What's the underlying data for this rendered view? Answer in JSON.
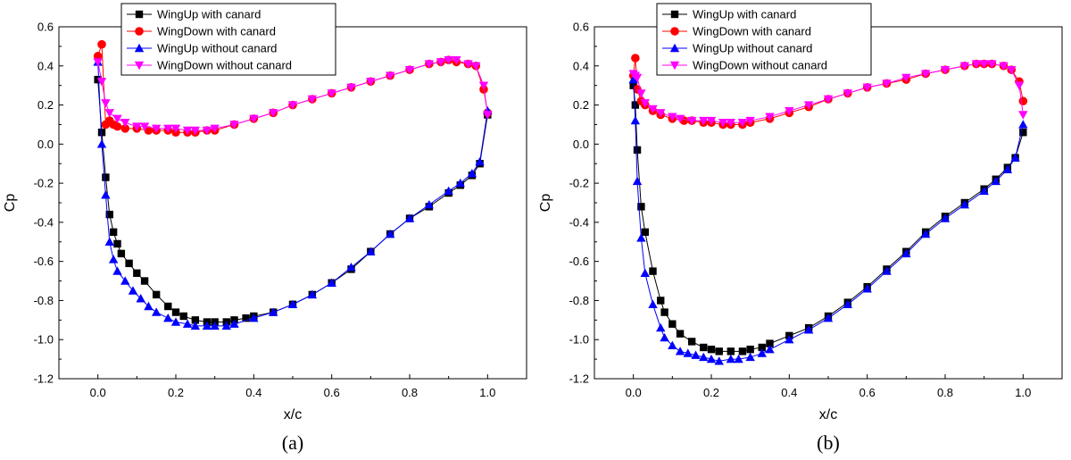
{
  "chart_data": [
    {
      "type": "scatter",
      "caption": "(a)",
      "xlabel": "x/c",
      "ylabel": "Cp",
      "xlim": [
        -0.1,
        1.1
      ],
      "ylim": [
        -1.2,
        0.6
      ],
      "xticks": [
        "0.0",
        "0.2",
        "0.4",
        "0.6",
        "0.8",
        "1.0"
      ],
      "yticks": [
        "0.6",
        "0.4",
        "0.2",
        "0.0",
        "-0.2",
        "-0.4",
        "-0.6",
        "-0.8",
        "-1.0",
        "-1.2"
      ],
      "legend_position": "top-center",
      "series": [
        {
          "name": "WingUp with canard",
          "marker": "square",
          "color": "#000000",
          "x": [
            0.0,
            0.01,
            0.02,
            0.03,
            0.04,
            0.05,
            0.06,
            0.08,
            0.1,
            0.12,
            0.15,
            0.18,
            0.2,
            0.22,
            0.25,
            0.28,
            0.3,
            0.33,
            0.35,
            0.38,
            0.4,
            0.45,
            0.5,
            0.55,
            0.6,
            0.65,
            0.7,
            0.75,
            0.8,
            0.85,
            0.9,
            0.93,
            0.96,
            0.98,
            1.0
          ],
          "y": [
            0.33,
            0.06,
            -0.17,
            -0.36,
            -0.45,
            -0.51,
            -0.56,
            -0.61,
            -0.66,
            -0.7,
            -0.77,
            -0.83,
            -0.86,
            -0.88,
            -0.9,
            -0.91,
            -0.91,
            -0.91,
            -0.9,
            -0.89,
            -0.88,
            -0.86,
            -0.82,
            -0.77,
            -0.71,
            -0.64,
            -0.55,
            -0.46,
            -0.38,
            -0.32,
            -0.25,
            -0.21,
            -0.16,
            -0.1,
            0.15
          ]
        },
        {
          "name": "WingDown with canard",
          "marker": "circle",
          "color": "#ff0000",
          "x": [
            0.0,
            0.01,
            0.02,
            0.03,
            0.04,
            0.05,
            0.07,
            0.1,
            0.13,
            0.15,
            0.18,
            0.2,
            0.23,
            0.25,
            0.28,
            0.3,
            0.35,
            0.4,
            0.45,
            0.5,
            0.55,
            0.6,
            0.65,
            0.7,
            0.75,
            0.8,
            0.85,
            0.88,
            0.9,
            0.92,
            0.95,
            0.97,
            0.99,
            1.0
          ],
          "y": [
            0.45,
            0.51,
            0.1,
            0.12,
            0.1,
            0.09,
            0.08,
            0.08,
            0.07,
            0.07,
            0.07,
            0.06,
            0.06,
            0.06,
            0.07,
            0.07,
            0.1,
            0.13,
            0.16,
            0.2,
            0.23,
            0.26,
            0.29,
            0.32,
            0.35,
            0.38,
            0.41,
            0.42,
            0.43,
            0.42,
            0.41,
            0.4,
            0.28,
            0.16
          ]
        },
        {
          "name": "WingUp without canard",
          "marker": "triangle-up",
          "color": "#0000ff",
          "x": [
            0.0,
            0.01,
            0.02,
            0.03,
            0.04,
            0.05,
            0.07,
            0.09,
            0.11,
            0.13,
            0.15,
            0.18,
            0.2,
            0.23,
            0.25,
            0.28,
            0.3,
            0.33,
            0.35,
            0.4,
            0.45,
            0.5,
            0.55,
            0.6,
            0.65,
            0.7,
            0.75,
            0.8,
            0.85,
            0.9,
            0.93,
            0.96,
            0.98,
            1.0
          ],
          "y": [
            0.42,
            0.0,
            -0.26,
            -0.5,
            -0.59,
            -0.65,
            -0.7,
            -0.75,
            -0.79,
            -0.83,
            -0.86,
            -0.89,
            -0.91,
            -0.92,
            -0.93,
            -0.93,
            -0.93,
            -0.93,
            -0.92,
            -0.89,
            -0.86,
            -0.82,
            -0.77,
            -0.71,
            -0.63,
            -0.55,
            -0.46,
            -0.38,
            -0.31,
            -0.24,
            -0.2,
            -0.15,
            -0.09,
            0.17
          ]
        },
        {
          "name": "WingDown without canard",
          "marker": "triangle-down",
          "color": "#ff00ff",
          "x": [
            0.0,
            0.01,
            0.02,
            0.03,
            0.05,
            0.07,
            0.1,
            0.12,
            0.15,
            0.18,
            0.2,
            0.23,
            0.25,
            0.28,
            0.3,
            0.35,
            0.4,
            0.45,
            0.5,
            0.55,
            0.6,
            0.65,
            0.7,
            0.75,
            0.8,
            0.85,
            0.88,
            0.9,
            0.92,
            0.95,
            0.97,
            0.99,
            1.0
          ],
          "y": [
            0.42,
            0.32,
            0.21,
            0.16,
            0.13,
            0.11,
            0.09,
            0.09,
            0.08,
            0.08,
            0.08,
            0.07,
            0.07,
            0.07,
            0.08,
            0.1,
            0.13,
            0.16,
            0.2,
            0.23,
            0.26,
            0.29,
            0.32,
            0.35,
            0.38,
            0.41,
            0.42,
            0.43,
            0.43,
            0.41,
            0.4,
            0.3,
            0.15
          ]
        }
      ]
    },
    {
      "type": "scatter",
      "caption": "(b)",
      "xlabel": "x/c",
      "ylabel": "Cp",
      "xlim": [
        -0.1,
        1.1
      ],
      "ylim": [
        -1.2,
        0.6
      ],
      "xticks": [
        "0.0",
        "0.2",
        "0.4",
        "0.6",
        "0.8",
        "1.0"
      ],
      "yticks": [
        "0.6",
        "0.4",
        "0.2",
        "0.0",
        "-0.2",
        "-0.4",
        "-0.6",
        "-0.8",
        "-1.0",
        "-1.2"
      ],
      "legend_position": "top-center",
      "series": [
        {
          "name": "WingUp with canard",
          "marker": "square",
          "color": "#000000",
          "x": [
            0.0,
            0.005,
            0.01,
            0.02,
            0.03,
            0.05,
            0.07,
            0.08,
            0.1,
            0.12,
            0.15,
            0.18,
            0.2,
            0.22,
            0.25,
            0.28,
            0.3,
            0.33,
            0.35,
            0.4,
            0.45,
            0.5,
            0.55,
            0.6,
            0.65,
            0.7,
            0.75,
            0.8,
            0.85,
            0.9,
            0.93,
            0.96,
            0.98,
            1.0
          ],
          "y": [
            0.3,
            0.2,
            -0.03,
            -0.32,
            -0.45,
            -0.65,
            -0.8,
            -0.86,
            -0.92,
            -0.97,
            -1.01,
            -1.04,
            -1.05,
            -1.06,
            -1.06,
            -1.06,
            -1.05,
            -1.04,
            -1.02,
            -0.98,
            -0.94,
            -0.88,
            -0.81,
            -0.73,
            -0.64,
            -0.55,
            -0.45,
            -0.37,
            -0.3,
            -0.23,
            -0.18,
            -0.12,
            -0.07,
            0.06
          ]
        },
        {
          "name": "WingDown with canard",
          "marker": "circle",
          "color": "#ff0000",
          "x": [
            0.0,
            0.005,
            0.01,
            0.02,
            0.03,
            0.05,
            0.07,
            0.1,
            0.13,
            0.15,
            0.18,
            0.2,
            0.23,
            0.25,
            0.28,
            0.3,
            0.35,
            0.4,
            0.45,
            0.5,
            0.55,
            0.6,
            0.65,
            0.7,
            0.75,
            0.8,
            0.85,
            0.88,
            0.9,
            0.92,
            0.95,
            0.97,
            0.99,
            1.0
          ],
          "y": [
            0.35,
            0.44,
            0.28,
            0.22,
            0.2,
            0.17,
            0.15,
            0.13,
            0.12,
            0.12,
            0.11,
            0.11,
            0.1,
            0.1,
            0.1,
            0.11,
            0.13,
            0.16,
            0.19,
            0.23,
            0.26,
            0.29,
            0.31,
            0.33,
            0.36,
            0.38,
            0.4,
            0.41,
            0.41,
            0.41,
            0.4,
            0.38,
            0.32,
            0.22
          ]
        },
        {
          "name": "WingUp without canard",
          "marker": "triangle-up",
          "color": "#0000ff",
          "x": [
            0.0,
            0.005,
            0.01,
            0.02,
            0.03,
            0.05,
            0.07,
            0.08,
            0.1,
            0.12,
            0.14,
            0.16,
            0.18,
            0.2,
            0.22,
            0.25,
            0.27,
            0.3,
            0.33,
            0.35,
            0.4,
            0.45,
            0.5,
            0.55,
            0.6,
            0.65,
            0.7,
            0.75,
            0.8,
            0.85,
            0.9,
            0.93,
            0.96,
            0.98,
            1.0
          ],
          "y": [
            0.33,
            0.12,
            -0.19,
            -0.48,
            -0.66,
            -0.82,
            -0.94,
            -0.99,
            -1.03,
            -1.06,
            -1.07,
            -1.08,
            -1.09,
            -1.1,
            -1.11,
            -1.1,
            -1.1,
            -1.09,
            -1.07,
            -1.05,
            -1.0,
            -0.95,
            -0.89,
            -0.82,
            -0.74,
            -0.65,
            -0.56,
            -0.46,
            -0.38,
            -0.31,
            -0.24,
            -0.19,
            -0.13,
            -0.07,
            0.1
          ]
        },
        {
          "name": "WingDown without canard",
          "marker": "triangle-down",
          "color": "#ff00ff",
          "x": [
            0.0,
            0.005,
            0.01,
            0.02,
            0.03,
            0.05,
            0.07,
            0.1,
            0.12,
            0.15,
            0.18,
            0.2,
            0.23,
            0.25,
            0.28,
            0.3,
            0.35,
            0.4,
            0.45,
            0.5,
            0.55,
            0.6,
            0.65,
            0.7,
            0.75,
            0.8,
            0.85,
            0.88,
            0.9,
            0.92,
            0.95,
            0.97,
            0.99,
            1.0
          ],
          "y": [
            0.36,
            0.35,
            0.34,
            0.26,
            0.21,
            0.18,
            0.16,
            0.14,
            0.13,
            0.12,
            0.12,
            0.12,
            0.11,
            0.11,
            0.11,
            0.12,
            0.14,
            0.17,
            0.2,
            0.23,
            0.26,
            0.29,
            0.31,
            0.34,
            0.36,
            0.38,
            0.4,
            0.41,
            0.41,
            0.41,
            0.4,
            0.38,
            0.3,
            0.15
          ]
        }
      ]
    }
  ]
}
